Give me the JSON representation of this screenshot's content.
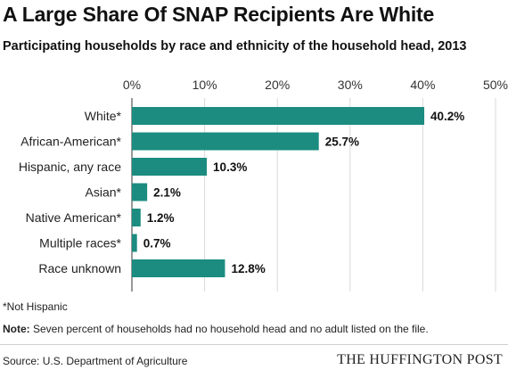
{
  "title": "A Large Share Of SNAP Recipients Are White",
  "subtitle": "Participating households by race and ethnicity of the household head, 2013",
  "footnote": "*Not Hispanic",
  "note_label": "Note:",
  "note_text": " Seven percent of households had no household head and no adult listed on the file.",
  "source": "Source: U.S. Department of Agriculture",
  "brand": "THE HUFFINGTON POST",
  "colors": {
    "bar": "#1b8c7f",
    "grid": "#d9d9d9",
    "axis": "#333333"
  },
  "chart_data": {
    "type": "bar",
    "orientation": "horizontal",
    "categories": [
      "White*",
      "African-American*",
      "Hispanic, any race",
      "Asian*",
      "Native American*",
      "Multiple races*",
      "Race unknown"
    ],
    "values": [
      40.2,
      25.7,
      10.3,
      2.1,
      1.2,
      0.7,
      12.8
    ],
    "data_labels": [
      "40.2%",
      "25.7%",
      "10.3%",
      "2.1%",
      "1.2%",
      "0.7%",
      "12.8%"
    ],
    "x_ticks": [
      0,
      10,
      20,
      30,
      40,
      50
    ],
    "x_tick_labels": [
      "0%",
      "10%",
      "20%",
      "30%",
      "40%",
      "50%"
    ],
    "xlim": [
      0,
      50
    ],
    "x_axis_position": "top",
    "grid": true
  }
}
